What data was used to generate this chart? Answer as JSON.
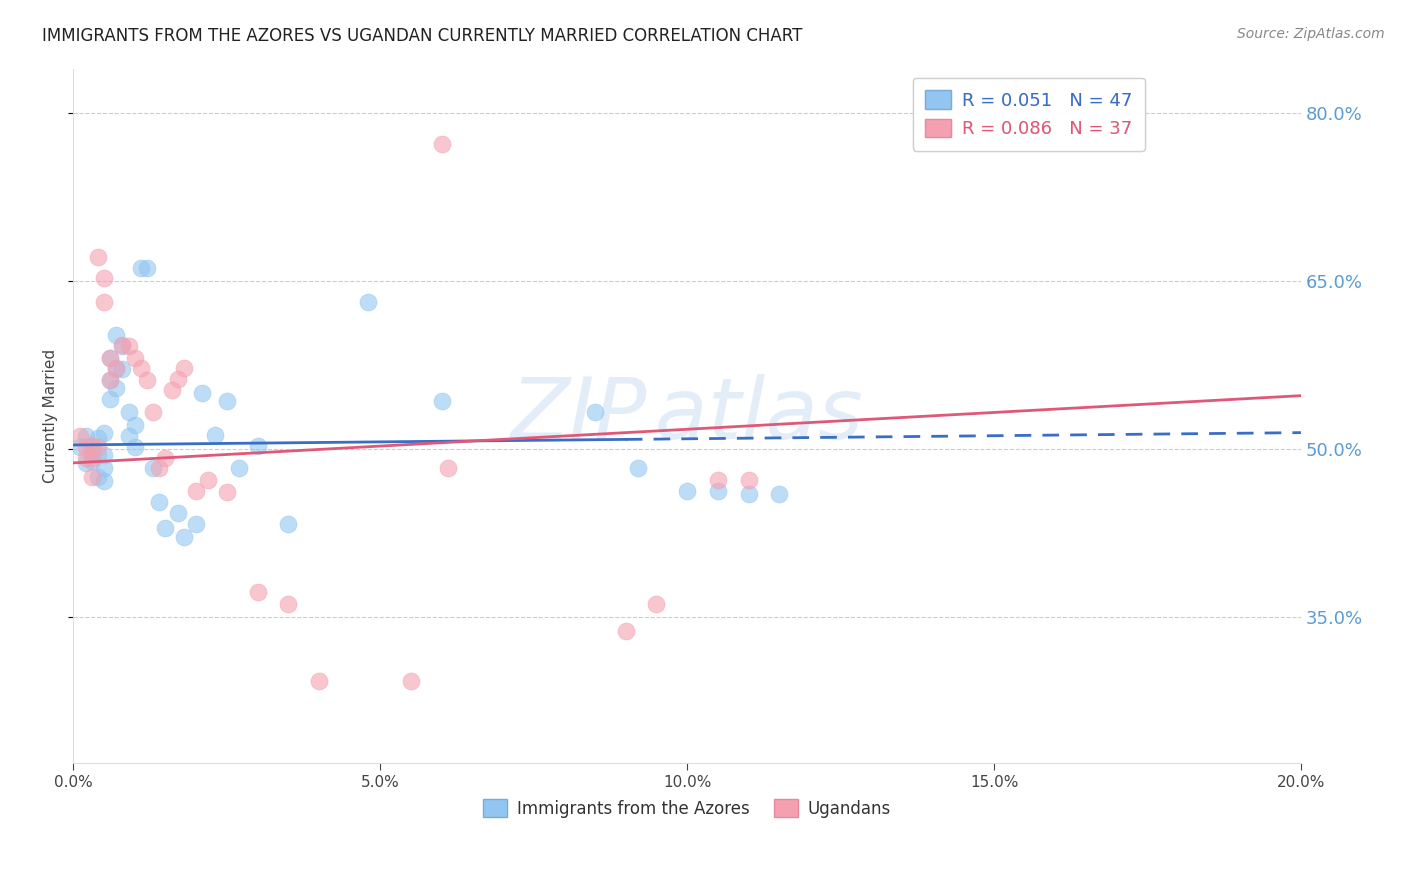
{
  "title": "IMMIGRANTS FROM THE AZORES VS UGANDAN CURRENTLY MARRIED CORRELATION CHART",
  "source": "Source: ZipAtlas.com",
  "ylabel": "Currently Married",
  "xlim": [
    0.0,
    0.2
  ],
  "ylim": [
    0.22,
    0.84
  ],
  "yticks": [
    0.35,
    0.5,
    0.65,
    0.8
  ],
  "xticks": [
    0.0,
    0.05,
    0.1,
    0.15,
    0.2
  ],
  "xtick_labels": [
    "0.0%",
    "5.0%",
    "10.0%",
    "15.0%",
    "20.0%"
  ],
  "ytick_labels": [
    "35.0%",
    "50.0%",
    "65.0%",
    "80.0%"
  ],
  "blue_color": "#92C5F0",
  "pink_color": "#F4A0B0",
  "label_blue": "Immigrants from the Azores",
  "label_pink": "Ugandans",
  "legend_r_blue": "R = 0.051",
  "legend_n_blue": "N = 47",
  "legend_r_pink": "R = 0.086",
  "legend_n_pink": "N = 37",
  "watermark": "ZIP atlas",
  "blue_scatter_x": [
    0.001,
    0.002,
    0.002,
    0.003,
    0.003,
    0.003,
    0.004,
    0.004,
    0.004,
    0.005,
    0.005,
    0.005,
    0.005,
    0.006,
    0.006,
    0.006,
    0.007,
    0.007,
    0.007,
    0.008,
    0.008,
    0.009,
    0.009,
    0.01,
    0.01,
    0.011,
    0.012,
    0.013,
    0.014,
    0.015,
    0.017,
    0.018,
    0.02,
    0.021,
    0.023,
    0.025,
    0.027,
    0.03,
    0.035,
    0.048,
    0.06,
    0.085,
    0.092,
    0.1,
    0.105,
    0.11,
    0.115
  ],
  "blue_scatter_y": [
    0.502,
    0.512,
    0.488,
    0.503,
    0.498,
    0.49,
    0.51,
    0.495,
    0.475,
    0.515,
    0.495,
    0.483,
    0.472,
    0.582,
    0.562,
    0.545,
    0.602,
    0.572,
    0.555,
    0.592,
    0.572,
    0.533,
    0.512,
    0.522,
    0.502,
    0.662,
    0.662,
    0.483,
    0.453,
    0.43,
    0.443,
    0.422,
    0.433,
    0.55,
    0.513,
    0.543,
    0.483,
    0.503,
    0.433,
    0.632,
    0.543,
    0.533,
    0.483,
    0.463,
    0.463,
    0.46,
    0.46
  ],
  "pink_scatter_x": [
    0.001,
    0.002,
    0.002,
    0.003,
    0.003,
    0.003,
    0.004,
    0.004,
    0.005,
    0.005,
    0.006,
    0.006,
    0.007,
    0.008,
    0.009,
    0.01,
    0.011,
    0.012,
    0.013,
    0.014,
    0.015,
    0.016,
    0.017,
    0.018,
    0.02,
    0.022,
    0.025,
    0.03,
    0.035,
    0.04,
    0.055,
    0.06,
    0.061,
    0.09,
    0.095,
    0.105,
    0.11
  ],
  "pink_scatter_y": [
    0.512,
    0.492,
    0.502,
    0.492,
    0.475,
    0.503,
    0.502,
    0.672,
    0.653,
    0.632,
    0.582,
    0.562,
    0.573,
    0.593,
    0.592,
    0.582,
    0.573,
    0.562,
    0.533,
    0.483,
    0.492,
    0.553,
    0.563,
    0.573,
    0.463,
    0.473,
    0.462,
    0.373,
    0.362,
    0.293,
    0.293,
    0.773,
    0.483,
    0.338,
    0.362,
    0.473,
    0.473
  ],
  "blue_trend": [
    0.504,
    0.515
  ],
  "pink_trend": [
    0.488,
    0.548
  ],
  "blue_trend_solid_end": 0.09,
  "grid_color": "#CCCCCC",
  "title_fontsize": 12,
  "tick_fontsize": 11,
  "legend_fontsize": 13,
  "source_fontsize": 10
}
